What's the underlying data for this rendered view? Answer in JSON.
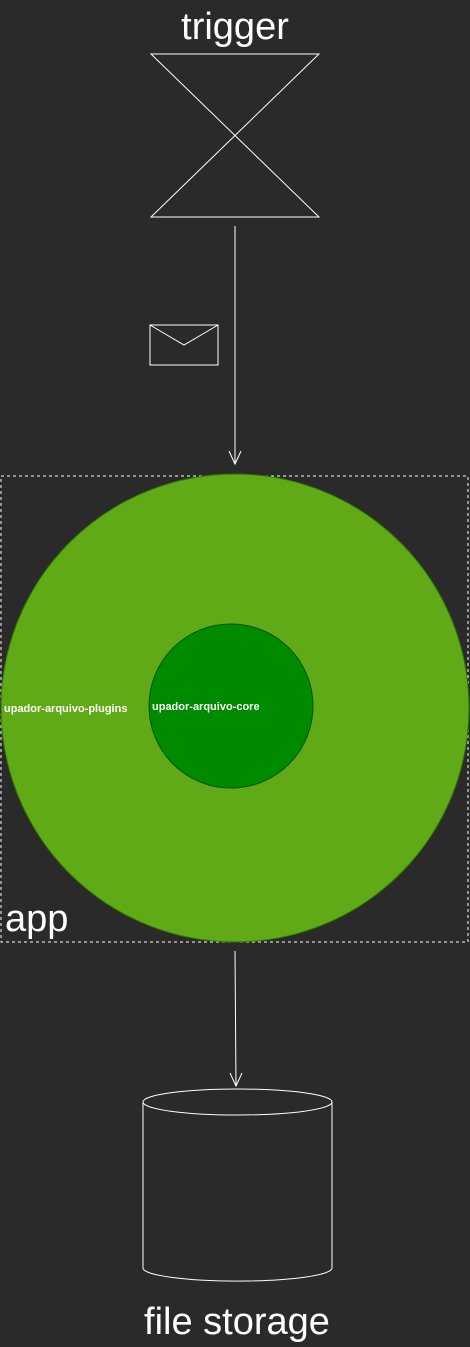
{
  "labels": {
    "trigger": "trigger",
    "app": "app",
    "plugins": "upador-arquivo-plugins",
    "core": "upador-arquivo-core",
    "storage": "file storage"
  },
  "colors": {
    "background": "#2a2a2a",
    "stroke": "#ffffff",
    "outer_circle": "#60a917",
    "inner_circle": "#008a00",
    "text": "#ffffff"
  },
  "icons": {
    "trigger_shape": "hourglass-trigger-icon",
    "message": "envelope-icon",
    "storage": "database-cylinder-icon"
  }
}
